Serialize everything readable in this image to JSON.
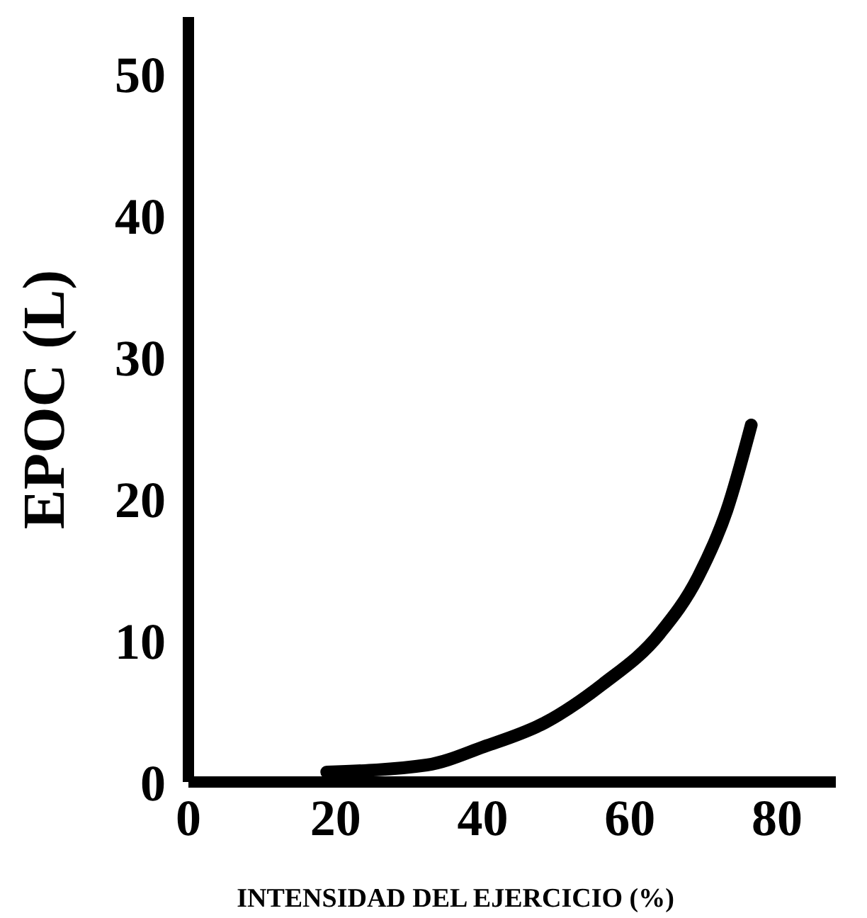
{
  "chart_data": {
    "type": "line",
    "xlabel": "INTENSIDAD DEL EJERCICIO (%)",
    "ylabel": "EPOC (L)",
    "x": [
      18.8,
      32.4,
      40.2,
      48.5,
      56.3,
      64.1,
      69.3,
      73.2,
      76.5
    ],
    "series": [
      {
        "color": "#000000",
        "values": [
          0.7,
          1.2,
          2.5,
          4.2,
          6.9,
          10.5,
          14.5,
          19.2,
          25.2
        ]
      }
    ],
    "xlim": [
      0,
      88
    ],
    "xticks": [
      0,
      20,
      40,
      60,
      80
    ],
    "ylim": [
      0,
      54
    ],
    "yticks": [
      0,
      10,
      20,
      30,
      40,
      50
    ],
    "grid": false,
    "marker": "none",
    "line_style": "solid"
  }
}
